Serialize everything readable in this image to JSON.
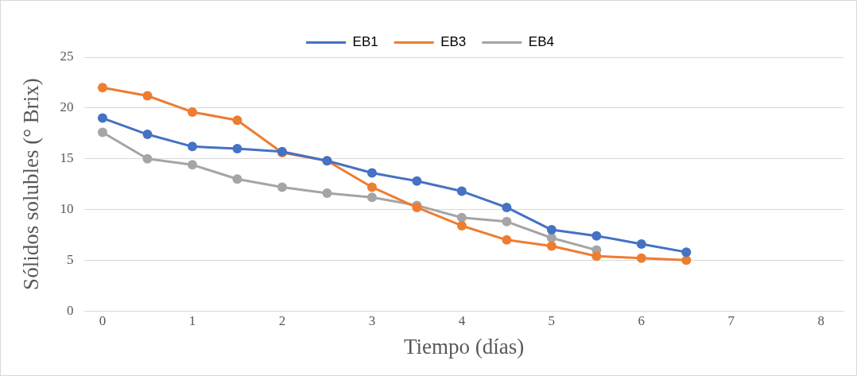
{
  "chart_data": {
    "type": "line",
    "xlabel": "Tiempo (días)",
    "ylabel": "Sólidos solubles (° Brix)",
    "x": [
      0,
      0.5,
      1,
      1.5,
      2,
      2.5,
      3,
      3.5,
      4,
      4.5,
      5,
      5.5,
      6,
      6.5
    ],
    "series": [
      {
        "name": "EB1",
        "color": "#4472c4",
        "values": [
          19.0,
          17.4,
          16.2,
          16.0,
          15.7,
          14.8,
          13.6,
          12.8,
          11.8,
          10.2,
          8.0,
          7.4,
          6.6,
          5.8
        ]
      },
      {
        "name": "EB3",
        "color": "#ed7d31",
        "values": [
          22.0,
          21.2,
          19.6,
          18.8,
          15.6,
          14.8,
          12.2,
          10.2,
          8.4,
          7.0,
          6.4,
          5.4,
          5.2,
          5.0
        ]
      },
      {
        "name": "EB4",
        "color": "#a5a5a5",
        "values": [
          17.6,
          15.0,
          14.4,
          13.0,
          12.2,
          11.6,
          11.2,
          10.4,
          9.2,
          8.8,
          7.2,
          6.0,
          null,
          null
        ]
      }
    ],
    "xlim": [
      -0.2,
      8.25
    ],
    "xticks": [
      0,
      1,
      2,
      3,
      4,
      5,
      6,
      7,
      8
    ],
    "ylim": [
      0,
      25
    ],
    "yticks": [
      0,
      5,
      10,
      15,
      20,
      25
    ],
    "grid": "y",
    "legend": "top",
    "marker": "circle",
    "line_style": "solid"
  }
}
